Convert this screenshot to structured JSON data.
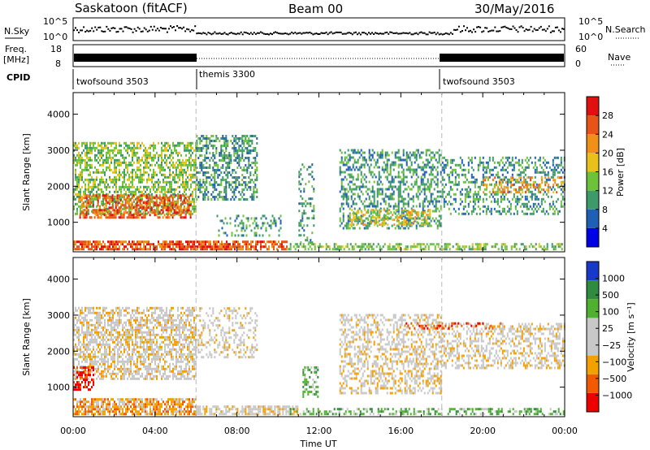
{
  "header": {
    "station": "Saskatoon (fitACF)",
    "beam": "Beam 00",
    "date": "30/May/2016"
  },
  "noise_panel": {
    "left_label": "N.Sky",
    "right_label": "N.Search",
    "tick_labels": [
      "10^5",
      "10^0"
    ]
  },
  "freq_panel": {
    "left_label_line1": "Freq.",
    "left_label_line2": "[MHz]",
    "left_ticks": [
      "18",
      "8"
    ],
    "right_ticks": [
      "60",
      "0"
    ],
    "right_label": "Nave"
  },
  "cpid": {
    "label": "CPID",
    "segments": [
      {
        "name": "twofsound 3503",
        "start_hour": 0,
        "end_hour": 6
      },
      {
        "name": "themis 3300",
        "start_hour": 6,
        "end_hour": 18
      },
      {
        "name": "twofsound 3503",
        "start_hour": 18,
        "end_hour": 24
      }
    ]
  },
  "colors": {
    "power_scale": [
      "#0000e6",
      "#1f5fb4",
      "#3f9a6a",
      "#6ec23a",
      "#e8c21a",
      "#f09018",
      "#e85418",
      "#e01010"
    ],
    "velocity_scale": [
      "#ee0000",
      "#f05a00",
      "#f4a000",
      "#c8c8c8",
      "#c8c8c8",
      "#50b030",
      "#308a40",
      "#1838c8"
    ]
  },
  "chart_data": [
    {
      "type": "heatmap",
      "panel": "power",
      "ylabel": "Slant Range [km]",
      "yticks": [
        "4000",
        "3000",
        "2000",
        "1000"
      ],
      "ylim": [
        180,
        4600
      ],
      "xlim": [
        0,
        24
      ],
      "colorbar": {
        "label": "Power [dB]",
        "ticks": [
          "28",
          "24",
          "20",
          "16",
          "12",
          "8",
          "4"
        ]
      },
      "bands": [
        {
          "t0": 0.0,
          "t1": 6.0,
          "r0": 1200,
          "r1": 3200,
          "level": 3,
          "density": 0.55
        },
        {
          "t0": 0.3,
          "t1": 5.8,
          "r0": 1100,
          "r1": 1800,
          "level": 6,
          "density": 0.55
        },
        {
          "t0": 0.0,
          "t1": 10.5,
          "r0": 220,
          "r1": 480,
          "level": 6,
          "density": 0.75
        },
        {
          "t0": 6.0,
          "t1": 9.0,
          "r0": 1600,
          "r1": 3400,
          "level": 2,
          "density": 0.45
        },
        {
          "t0": 7.0,
          "t1": 10.2,
          "r0": 600,
          "r1": 1200,
          "level": 2,
          "density": 0.3
        },
        {
          "t0": 11.0,
          "t1": 11.8,
          "r0": 400,
          "r1": 2600,
          "level": 2,
          "density": 0.25
        },
        {
          "t0": 13.0,
          "t1": 18.0,
          "r0": 800,
          "r1": 3000,
          "level": 2,
          "density": 0.4
        },
        {
          "t0": 13.5,
          "t1": 17.5,
          "r0": 900,
          "r1": 1400,
          "level": 4,
          "density": 0.4
        },
        {
          "t0": 10.5,
          "t1": 24.0,
          "r0": 220,
          "r1": 420,
          "level": 3,
          "density": 0.5
        },
        {
          "t0": 18.0,
          "t1": 24.0,
          "r0": 1200,
          "r1": 2800,
          "level": 2,
          "density": 0.35
        },
        {
          "t0": 20.0,
          "t1": 24.0,
          "r0": 1800,
          "r1": 2300,
          "level": 5,
          "density": 0.35
        }
      ]
    },
    {
      "type": "heatmap",
      "panel": "velocity",
      "ylabel": "Slant Range [km]",
      "yticks": [
        "4000",
        "3000",
        "2000",
        "1000"
      ],
      "ylim": [
        180,
        4600
      ],
      "xlim": [
        0,
        24
      ],
      "xticks": [
        "00:00",
        "04:00",
        "08:00",
        "12:00",
        "16:00",
        "20:00",
        "00:00"
      ],
      "xlabel": "Time UT",
      "colorbar": {
        "label": "Velocity [m s⁻¹]",
        "ticks": [
          "1000",
          "500",
          "100",
          "25",
          "−25",
          "−100",
          "−500",
          "−1000"
        ]
      },
      "bands": [
        {
          "t0": 0.0,
          "t1": 6.0,
          "r0": 1200,
          "r1": 3200,
          "level": 3,
          "density": 0.6
        },
        {
          "t0": 0.0,
          "t1": 6.0,
          "r0": 220,
          "r1": 700,
          "level": 2,
          "density": 0.75
        },
        {
          "t0": 0.0,
          "t1": 1.0,
          "r0": 900,
          "r1": 1600,
          "level": 0,
          "density": 0.5
        },
        {
          "t0": 6.0,
          "t1": 11.0,
          "r0": 220,
          "r1": 500,
          "level": 3,
          "density": 0.6
        },
        {
          "t0": 6.0,
          "t1": 9.0,
          "r0": 1800,
          "r1": 3200,
          "level": 3,
          "density": 0.3
        },
        {
          "t0": 11.2,
          "t1": 12.0,
          "r0": 700,
          "r1": 1600,
          "level": 5,
          "density": 0.45
        },
        {
          "t0": 13.0,
          "t1": 18.0,
          "r0": 800,
          "r1": 3000,
          "level": 3,
          "density": 0.45
        },
        {
          "t0": 10.5,
          "t1": 24.0,
          "r0": 220,
          "r1": 420,
          "level": 5,
          "density": 0.45
        },
        {
          "t0": 18.0,
          "t1": 24.0,
          "r0": 1500,
          "r1": 2800,
          "level": 3,
          "density": 0.4
        },
        {
          "t0": 16.0,
          "t1": 21.0,
          "r0": 2600,
          "r1": 2800,
          "level": 1,
          "density": 0.25
        }
      ]
    }
  ]
}
